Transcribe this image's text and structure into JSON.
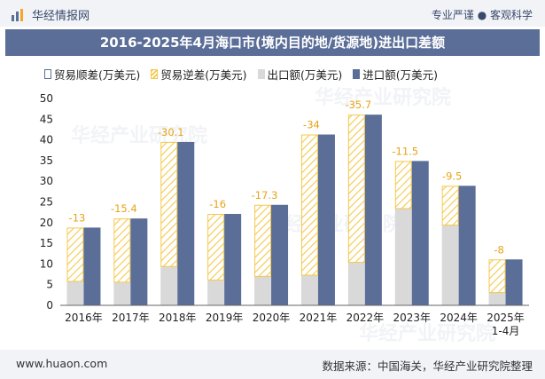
{
  "header": {
    "brand": "华经情报网",
    "slogan": "专业严谨 ● 客观科学"
  },
  "watermark": "华经产业研究院",
  "footer": {
    "url": "www.huaon.com",
    "source": "数据来源：中国海关，华经产业研究院整理"
  },
  "colors": {
    "export": "#d9d9d9",
    "import": "#5b6e98",
    "deficit": "#f5c84b",
    "label": "#e8a317"
  },
  "chart_data": {
    "type": "bar",
    "title": "2016-2025年4月海口市(境内目的地/货源地)进出口差额",
    "xlabel": "",
    "ylabel": "",
    "ylim": [
      0,
      50
    ],
    "yticks": [
      0,
      5,
      10,
      15,
      20,
      25,
      30,
      35,
      40,
      45,
      50
    ],
    "grid": false,
    "legend_position": "top",
    "categories": [
      "2016年",
      "2017年",
      "2018年",
      "2019年",
      "2020年",
      "2021年",
      "2022年",
      "2023年",
      "2024年",
      "2025年\n1-4月"
    ],
    "series": [
      {
        "name": "贸易顺差(万美元)",
        "values": [
          null,
          null,
          null,
          null,
          null,
          null,
          null,
          null,
          null,
          null
        ]
      },
      {
        "name": "贸易逆差(万美元)",
        "values": [
          -13,
          -15.4,
          -30.1,
          -16,
          -17.3,
          -34,
          -35.7,
          -11.5,
          -9.5,
          -8
        ]
      },
      {
        "name": "出口额(万美元)",
        "values": [
          5.8,
          5.6,
          9.4,
          6.1,
          7.0,
          7.3,
          10.4,
          23.4,
          19.4,
          3.1
        ]
      },
      {
        "name": "进口额(万美元)",
        "values": [
          18.8,
          21.0,
          39.5,
          22.1,
          24.3,
          41.3,
          46.1,
          34.9,
          28.9,
          11.1
        ]
      }
    ],
    "data_labels": [
      "-13",
      "-15.4",
      "-30.1",
      "-16",
      "-17.3",
      "-34",
      "-35.7",
      "-11.5",
      "-9.5",
      "-8"
    ]
  }
}
